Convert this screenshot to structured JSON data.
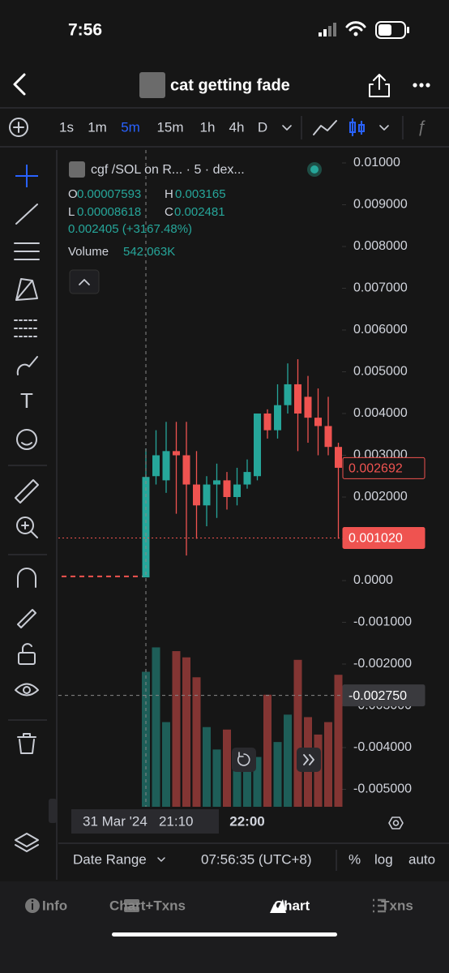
{
  "status_bar": {
    "time": "7:56"
  },
  "header": {
    "title": "cat getting fade"
  },
  "toolbar": {
    "intervals": [
      {
        "label": "1s"
      },
      {
        "label": "1m"
      },
      {
        "label": "5m",
        "active": true
      },
      {
        "label": "15m"
      },
      {
        "label": "1h"
      },
      {
        "label": "4h"
      },
      {
        "label": "D"
      }
    ]
  },
  "legend": {
    "symbol": "cgf /SOL on R... · 5 · dex...",
    "open_label": "O",
    "high_label": "H",
    "low_label": "L",
    "close_label": "C",
    "change": "0.002405 (+3167.48%)"
  },
  "chart_data": {
    "type": "candlestick",
    "categories": [
      "31 Mar '24   21:10",
      null,
      null,
      null,
      null,
      null,
      null,
      null,
      null,
      null,
      "22:00",
      null,
      null,
      null,
      null,
      null,
      null,
      null,
      null,
      null
    ],
    "open": [
      7.593e-05,
      0.0025,
      0.0024,
      0.0031,
      0.003,
      0.0023,
      0.0018,
      0.0023,
      0.0024,
      0.002,
      0.0023,
      0.0025,
      0.004,
      0.0036,
      0.0042,
      0.0047,
      0.0044,
      0.0039,
      0.0037,
      0.0032
    ],
    "high": [
      0.003165,
      0.0036,
      0.0038,
      0.0038,
      0.0038,
      0.0031,
      0.0025,
      0.0028,
      0.0026,
      0.0027,
      0.0029,
      0.004,
      0.0041,
      0.0047,
      0.0052,
      0.0053,
      0.0049,
      0.0046,
      0.0044,
      0.0033
    ],
    "low": [
      8.618e-05,
      0.0023,
      0.0021,
      0.0016,
      0.0006,
      0.001,
      0.0013,
      0.0015,
      0.0017,
      0.0018,
      0.0022,
      0.0024,
      0.0034,
      0.0034,
      0.004,
      0.0031,
      0.0033,
      0.003,
      0.003,
      0.001
    ],
    "close": [
      0.002481,
      0.003,
      0.0031,
      0.003,
      0.0023,
      0.0018,
      0.0023,
      0.0024,
      0.002,
      0.0023,
      0.0026,
      0.004,
      0.0036,
      0.0042,
      0.0047,
      0.004,
      0.0039,
      0.0037,
      0.0032,
      0.0027
    ],
    "volume": {
      "name": "Volume",
      "values": [
        542063,
        640000,
        340000,
        625000,
        600000,
        520000,
        320000,
        230000,
        310000,
        220000,
        230000,
        200000,
        450000,
        260000,
        370000,
        590000,
        360000,
        290000,
        340000,
        530000
      ],
      "value_labels": [
        "542.063K",
        null,
        null,
        null,
        null,
        null,
        null,
        null,
        null,
        null,
        null,
        null,
        null,
        null,
        null,
        null,
        null,
        null,
        null,
        null
      ]
    },
    "up_color": "#26a69a",
    "down_color": "#ef5350",
    "ylim": [
      -0.005417,
      0.01031
    ],
    "yticks": [
      {
        "value": 0.01,
        "label": "0.01000"
      },
      {
        "value": 0.009,
        "label": "0.009000"
      },
      {
        "value": 0.008,
        "label": "0.008000"
      },
      {
        "value": 0.007,
        "label": "0.007000"
      },
      {
        "value": 0.006,
        "label": "0.006000"
      },
      {
        "value": 0.005,
        "label": "0.005000"
      },
      {
        "value": 0.004,
        "label": "0.004000"
      },
      {
        "value": 0.003,
        "label": "0.003000"
      },
      {
        "value": 0.002,
        "label": "0.002000"
      },
      {
        "value": 0.001,
        "label": "0.001000"
      },
      {
        "value": 0,
        "label": "0.0000"
      },
      {
        "value": -0.001,
        "label": "-0.001000"
      },
      {
        "value": -0.002,
        "label": "-0.002000"
      },
      {
        "value": -0.003,
        "label": "-0.003000"
      },
      {
        "value": -0.004,
        "label": "-0.004000"
      },
      {
        "value": -0.005,
        "label": "-0.005000"
      }
    ],
    "volume_lim": [
      0,
      700000
    ],
    "price_tags": [
      {
        "value": 0.002692,
        "label": "0.002692",
        "kind": "close"
      },
      {
        "value": 0.00102,
        "label": "0.001020",
        "kind": "price-line"
      },
      {
        "value": -0.00275,
        "label": "-0.002750",
        "kind": "crosshair"
      }
    ]
  },
  "footer": {
    "date_range": "Date Range",
    "time": "07:56:35 (UTC+8)",
    "percent": "%",
    "log": "log",
    "auto": "auto"
  },
  "tabs": [
    {
      "label": "Info"
    },
    {
      "label": "Chart+Txns"
    },
    {
      "label": "Chart",
      "active": true
    },
    {
      "label": "Txns"
    }
  ]
}
